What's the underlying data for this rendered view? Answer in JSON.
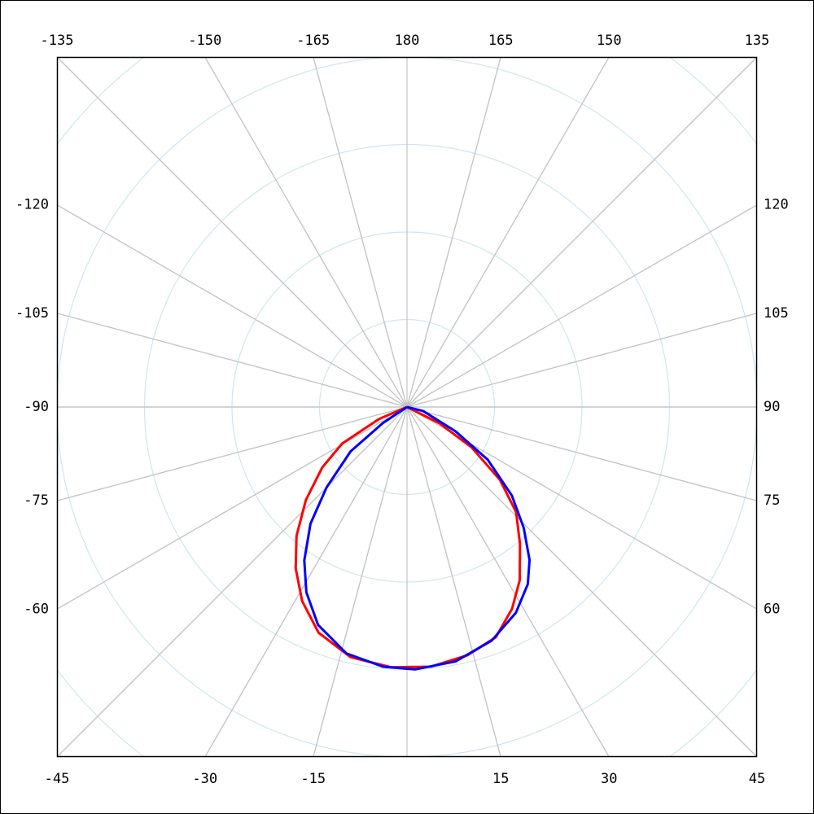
{
  "chart_data": {
    "type": "polar",
    "thetaticks": [
      -135,
      -150,
      -165,
      180,
      165,
      150,
      135,
      -120,
      -105,
      -90,
      -75,
      -60,
      120,
      105,
      90,
      75,
      60,
      -45,
      -30,
      -15,
      15,
      30,
      45
    ],
    "rlim": [
      0,
      4
    ],
    "rticks": [
      1,
      2,
      3,
      4,
      5
    ],
    "grid": true,
    "series": [
      {
        "color": "#ff0000",
        "theta": [
          -90,
          -66.8,
          -60.6,
          -54.5,
          -47.4,
          -40.6,
          -34.6,
          -28.4,
          -21.4,
          -12.7,
          -3.5,
          5.3,
          13.7,
          21.1,
          27.5,
          33.1,
          39.5,
          46.1,
          51.9,
          58.0,
          63.4,
          90
        ],
        "values": [
          0,
          0.35,
          0.85,
          1.19,
          1.57,
          1.94,
          2.24,
          2.52,
          2.77,
          2.93,
          2.98,
          2.98,
          2.92,
          2.82,
          2.6,
          2.36,
          2.03,
          1.73,
          1.35,
          0.87,
          0.41,
          0
        ]
      },
      {
        "color": "#0000ff",
        "theta": [
          -90,
          -56.3,
          -51.8,
          -45.0,
          -39.6,
          -33.8,
          -28.5,
          -22.2,
          -13.8,
          -5.3,
          1.8,
          10.8,
          19.9,
          27.9,
          34.3,
          38.7,
          44.0,
          49.8,
          56.9,
          63.4,
          76.0,
          90
        ],
        "values": [
          0,
          0.33,
          0.82,
          1.3,
          1.73,
          2.11,
          2.41,
          2.69,
          2.9,
          2.98,
          3.0,
          2.96,
          2.84,
          2.66,
          2.45,
          2.24,
          1.92,
          1.57,
          1.1,
          0.62,
          0.19,
          0
        ]
      }
    ]
  }
}
